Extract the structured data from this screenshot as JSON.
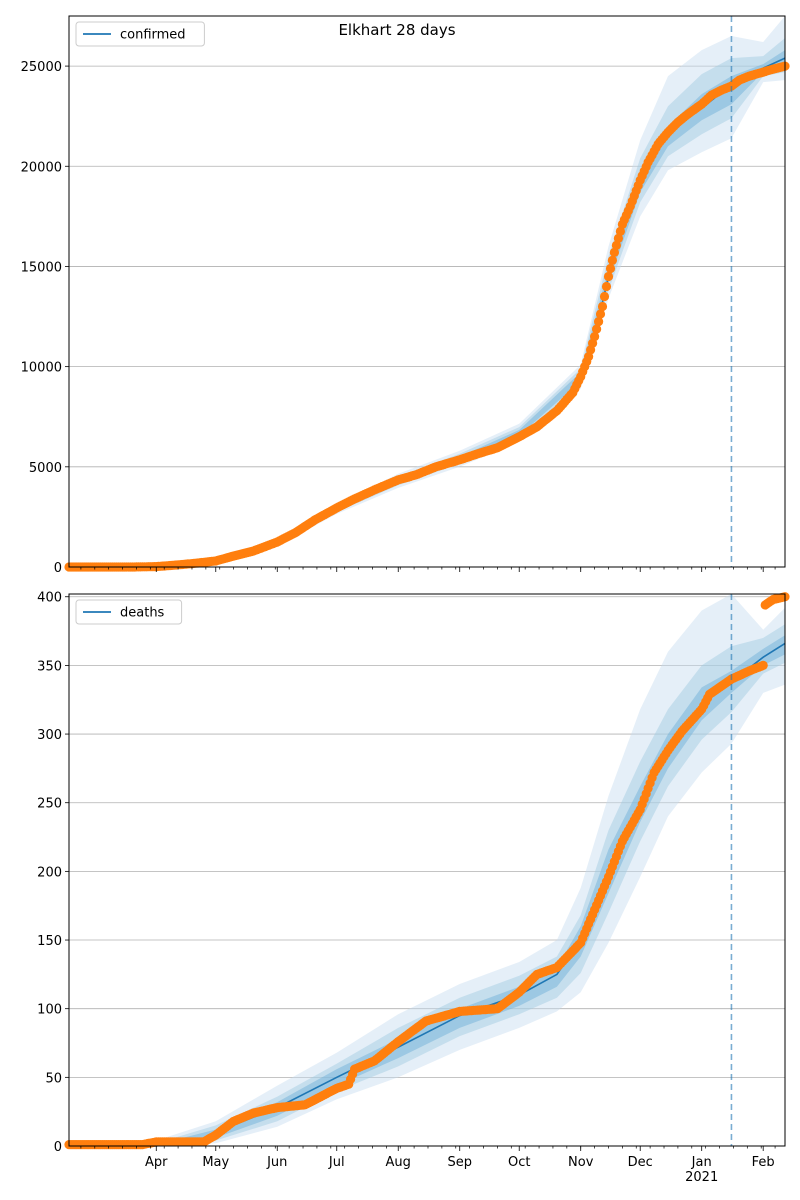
{
  "chart_data": [
    {
      "type": "line",
      "title": "Elkhart 28 days",
      "legend": {
        "label": "confirmed",
        "placement": "top-left"
      },
      "x_start": "2020-02-17",
      "x_end": "2021-02-12",
      "x_tick_labels": [
        {
          "date": "2020-04-01",
          "label": "Apr"
        },
        {
          "date": "2020-05-01",
          "label": "May"
        },
        {
          "date": "2020-06-01",
          "label": "Jun"
        },
        {
          "date": "2020-07-01",
          "label": "Jul"
        },
        {
          "date": "2020-08-01",
          "label": "Aug"
        },
        {
          "date": "2020-09-01",
          "label": "Sep"
        },
        {
          "date": "2020-10-01",
          "label": "Oct"
        },
        {
          "date": "2020-11-01",
          "label": "Nov"
        },
        {
          "date": "2020-12-01",
          "label": "Dec"
        },
        {
          "date": "2021-01-01",
          "label": "Jan\n2021"
        },
        {
          "date": "2021-02-01",
          "label": "Feb"
        }
      ],
      "ylim": [
        0,
        27500
      ],
      "yticks": [
        0,
        5000,
        10000,
        15000,
        20000,
        25000
      ],
      "grid": "y",
      "vline_date": "2021-01-16",
      "model_series": {
        "name": "confirmed",
        "x": [
          "2020-02-17",
          "2020-03-15",
          "2020-04-01",
          "2020-04-20",
          "2020-05-01",
          "2020-05-15",
          "2020-06-01",
          "2020-06-15",
          "2020-07-01",
          "2020-07-15",
          "2020-08-01",
          "2020-08-15",
          "2020-09-01",
          "2020-09-15",
          "2020-10-01",
          "2020-10-15",
          "2020-10-25",
          "2020-11-01",
          "2020-11-08",
          "2020-11-15",
          "2020-11-22",
          "2020-12-01",
          "2020-12-08",
          "2020-12-15",
          "2020-12-22",
          "2021-01-01",
          "2021-01-10",
          "2021-01-16",
          "2021-01-25",
          "2021-02-01",
          "2021-02-12"
        ],
        "y": [
          0,
          10,
          20,
          120,
          250,
          550,
          1250,
          1950,
          2900,
          3450,
          4300,
          4800,
          5400,
          5900,
          6700,
          7400,
          8300,
          9500,
          11500,
          14500,
          17000,
          19000,
          20800,
          21700,
          22300,
          22900,
          23600,
          24000,
          24600,
          24900,
          25400
        ]
      },
      "bands": [
        {
          "x": [
            "2020-02-17",
            "2020-04-01",
            "2020-05-01",
            "2020-06-01",
            "2020-07-01",
            "2020-08-01",
            "2020-09-01",
            "2020-10-01",
            "2020-11-01",
            "2020-11-15",
            "2020-12-01",
            "2020-12-15",
            "2021-01-01",
            "2021-01-16",
            "2021-02-01",
            "2021-02-12"
          ],
          "lower": [
            0,
            0,
            150,
            1050,
            2650,
            3950,
            5000,
            6250,
            8900,
            13400,
            17500,
            19800,
            20700,
            21400,
            24200,
            24300
          ],
          "upper": [
            0,
            40,
            350,
            1450,
            3150,
            4650,
            5800,
            7150,
            10100,
            16000,
            21300,
            24500,
            25800,
            26500,
            26200,
            27500
          ]
        },
        {
          "x": [
            "2020-02-17",
            "2020-04-01",
            "2020-05-01",
            "2020-06-01",
            "2020-07-01",
            "2020-08-01",
            "2020-09-01",
            "2020-10-01",
            "2020-11-01",
            "2020-11-15",
            "2020-12-01",
            "2020-12-15",
            "2021-01-01",
            "2021-01-16",
            "2021-02-01",
            "2021-02-12"
          ],
          "lower": [
            0,
            5,
            190,
            1120,
            2750,
            4080,
            5150,
            6420,
            9100,
            13800,
            18200,
            20500,
            21600,
            22400,
            24500,
            24700
          ],
          "upper": [
            0,
            35,
            310,
            1380,
            3050,
            4520,
            5650,
            6980,
            9900,
            15500,
            20400,
            23000,
            24600,
            25400,
            25500,
            26400
          ]
        },
        {
          "x": [
            "2020-02-17",
            "2020-04-01",
            "2020-05-01",
            "2020-06-01",
            "2020-07-01",
            "2020-08-01",
            "2020-09-01",
            "2020-10-01",
            "2020-11-01",
            "2020-11-15",
            "2020-12-01",
            "2020-12-15",
            "2021-01-01",
            "2021-01-16",
            "2021-02-01",
            "2021-02-12"
          ],
          "lower": [
            0,
            10,
            220,
            1190,
            2840,
            4200,
            5290,
            6560,
            9280,
            14200,
            18700,
            21000,
            22300,
            23100,
            24700,
            25000
          ],
          "upper": [
            0,
            30,
            280,
            1310,
            2960,
            4400,
            5510,
            6840,
            9720,
            14900,
            19700,
            22000,
            23600,
            24500,
            25100,
            25800
          ]
        }
      ],
      "observed_series": {
        "name": "observed",
        "x": [
          "2020-02-17",
          "2020-03-20",
          "2020-04-01",
          "2020-04-10",
          "2020-04-20",
          "2020-05-01",
          "2020-05-10",
          "2020-05-20",
          "2020-06-01",
          "2020-06-10",
          "2020-06-20",
          "2020-07-01",
          "2020-07-10",
          "2020-07-20",
          "2020-08-01",
          "2020-08-10",
          "2020-08-20",
          "2020-09-01",
          "2020-09-10",
          "2020-09-20",
          "2020-10-01",
          "2020-10-10",
          "2020-10-20",
          "2020-10-28",
          "2020-11-01",
          "2020-11-05",
          "2020-11-08",
          "2020-11-12",
          "2020-11-15",
          "2020-11-18",
          "2020-11-22",
          "2020-11-26",
          "2020-12-01",
          "2020-12-05",
          "2020-12-10",
          "2020-12-15",
          "2020-12-20",
          "2020-12-25",
          "2021-01-01",
          "2021-01-06",
          "2021-01-11",
          "2021-01-16",
          "2021-01-20",
          "2021-01-25",
          "2021-02-01",
          "2021-02-06",
          "2021-02-12"
        ],
        "y": [
          0,
          0,
          20,
          90,
          180,
          300,
          550,
          800,
          1250,
          1700,
          2350,
          2950,
          3400,
          3850,
          4350,
          4600,
          5000,
          5350,
          5650,
          5950,
          6500,
          7000,
          7800,
          8700,
          9500,
          10500,
          11500,
          13000,
          14500,
          15700,
          17100,
          18000,
          19300,
          20200,
          21100,
          21700,
          22200,
          22600,
          23100,
          23550,
          23800,
          24000,
          24300,
          24500,
          24700,
          24850,
          25000
        ]
      }
    },
    {
      "type": "line",
      "legend": {
        "label": "deaths",
        "placement": "top-left"
      },
      "x_start": "2020-02-17",
      "x_end": "2021-02-12",
      "ylim": [
        0,
        402
      ],
      "yticks": [
        0,
        50,
        100,
        150,
        200,
        250,
        300,
        350,
        400
      ],
      "grid": "y",
      "vline_date": "2021-01-16",
      "model_series": {
        "name": "deaths",
        "x": [
          "2020-02-17",
          "2020-04-01",
          "2020-04-25",
          "2020-05-01",
          "2020-06-01",
          "2020-07-01",
          "2020-08-01",
          "2020-09-01",
          "2020-10-01",
          "2020-10-20",
          "2020-11-01",
          "2020-11-15",
          "2020-12-01",
          "2020-12-15",
          "2021-01-01",
          "2021-01-16",
          "2021-02-01",
          "2021-02-12"
        ],
        "y": [
          0,
          0,
          5,
          10,
          28,
          50,
          72,
          95,
          110,
          125,
          150,
          200,
          250,
          288,
          322,
          338,
          356,
          366
        ]
      },
      "bands": [
        {
          "x": [
            "2020-02-17",
            "2020-04-01",
            "2020-05-01",
            "2020-06-01",
            "2020-07-01",
            "2020-08-01",
            "2020-09-01",
            "2020-10-01",
            "2020-10-20",
            "2020-11-01",
            "2020-11-15",
            "2020-12-01",
            "2020-12-15",
            "2021-01-01",
            "2021-01-16",
            "2021-02-01",
            "2021-02-12"
          ],
          "lower": [
            0,
            0,
            2,
            14,
            34,
            50,
            70,
            86,
            98,
            112,
            148,
            196,
            240,
            272,
            293,
            330,
            336
          ],
          "upper": [
            3,
            4,
            18,
            44,
            68,
            96,
            118,
            134,
            150,
            188,
            255,
            318,
            360,
            390,
            402,
            376,
            392
          ]
        },
        {
          "x": [
            "2020-02-17",
            "2020-04-01",
            "2020-05-01",
            "2020-06-01",
            "2020-07-01",
            "2020-08-01",
            "2020-09-01",
            "2020-10-01",
            "2020-10-20",
            "2020-11-01",
            "2020-11-15",
            "2020-12-01",
            "2020-12-15",
            "2021-01-01",
            "2021-01-16",
            "2021-02-01",
            "2021-02-12"
          ],
          "lower": [
            0,
            0,
            4,
            18,
            40,
            58,
            80,
            96,
            108,
            126,
            170,
            222,
            262,
            296,
            316,
            344,
            352
          ],
          "upper": [
            2,
            2,
            15,
            36,
            60,
            86,
            108,
            124,
            138,
            168,
            230,
            280,
            318,
            350,
            364,
            370,
            380
          ]
        },
        {
          "x": [
            "2020-02-17",
            "2020-04-01",
            "2020-05-01",
            "2020-06-01",
            "2020-07-01",
            "2020-08-01",
            "2020-09-01",
            "2020-10-01",
            "2020-10-20",
            "2020-11-01",
            "2020-11-15",
            "2020-12-01",
            "2020-12-15",
            "2021-01-01",
            "2021-01-16",
            "2021-02-01",
            "2021-02-12"
          ],
          "lower": [
            0,
            0,
            6,
            22,
            44,
            64,
            86,
            102,
            116,
            138,
            184,
            236,
            275,
            310,
            330,
            350,
            358
          ],
          "upper": [
            1,
            1,
            12,
            32,
            56,
            78,
            100,
            116,
            130,
            160,
            216,
            262,
            300,
            334,
            346,
            362,
            372
          ]
        }
      ],
      "observed_series": {
        "name": "observed",
        "x": [
          "2020-02-17",
          "2020-03-25",
          "2020-04-01",
          "2020-04-25",
          "2020-05-01",
          "2020-05-10",
          "2020-05-20",
          "2020-06-01",
          "2020-06-15",
          "2020-07-01",
          "2020-07-07",
          "2020-07-10",
          "2020-07-20",
          "2020-08-01",
          "2020-08-15",
          "2020-09-01",
          "2020-09-20",
          "2020-10-01",
          "2020-10-10",
          "2020-10-20",
          "2020-11-01",
          "2020-11-08",
          "2020-11-15",
          "2020-11-22",
          "2020-12-01",
          "2020-12-08",
          "2020-12-15",
          "2020-12-22",
          "2021-01-01",
          "2021-01-05",
          "2021-01-16",
          "2021-01-25",
          "2021-02-01",
          "2021-02-02",
          "2021-02-06",
          "2021-02-12"
        ],
        "y": [
          1,
          1,
          3,
          3,
          8,
          18,
          24,
          28,
          30,
          42,
          45,
          56,
          62,
          76,
          91,
          98,
          100,
          112,
          125,
          130,
          148,
          172,
          196,
          222,
          245,
          272,
          288,
          302,
          318,
          329,
          340,
          346,
          350,
          394,
          398,
          400
        ]
      }
    }
  ]
}
